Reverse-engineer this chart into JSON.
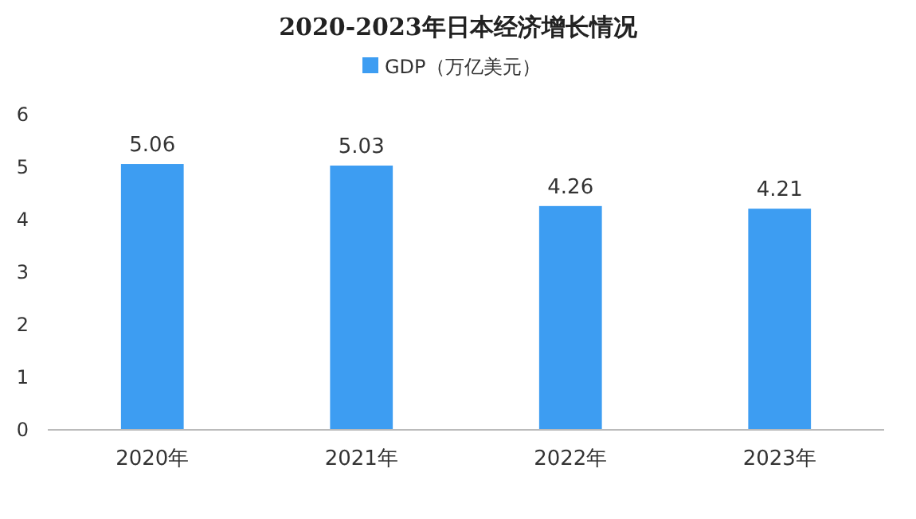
{
  "chart_data": {
    "type": "bar",
    "title": "2020-2023年日本经济增长情况",
    "categories": [
      "2020年",
      "2021年",
      "2022年",
      "2023年"
    ],
    "series": [
      {
        "name": "GDP（万亿美元）",
        "color": "#3d9df2",
        "values": [
          5.06,
          5.03,
          4.26,
          4.21
        ]
      }
    ],
    "ylim": [
      0,
      6
    ],
    "yticks": [
      0,
      1,
      2,
      3,
      4,
      5,
      6
    ],
    "data_labels": true,
    "legend": "top",
    "grid": false
  }
}
